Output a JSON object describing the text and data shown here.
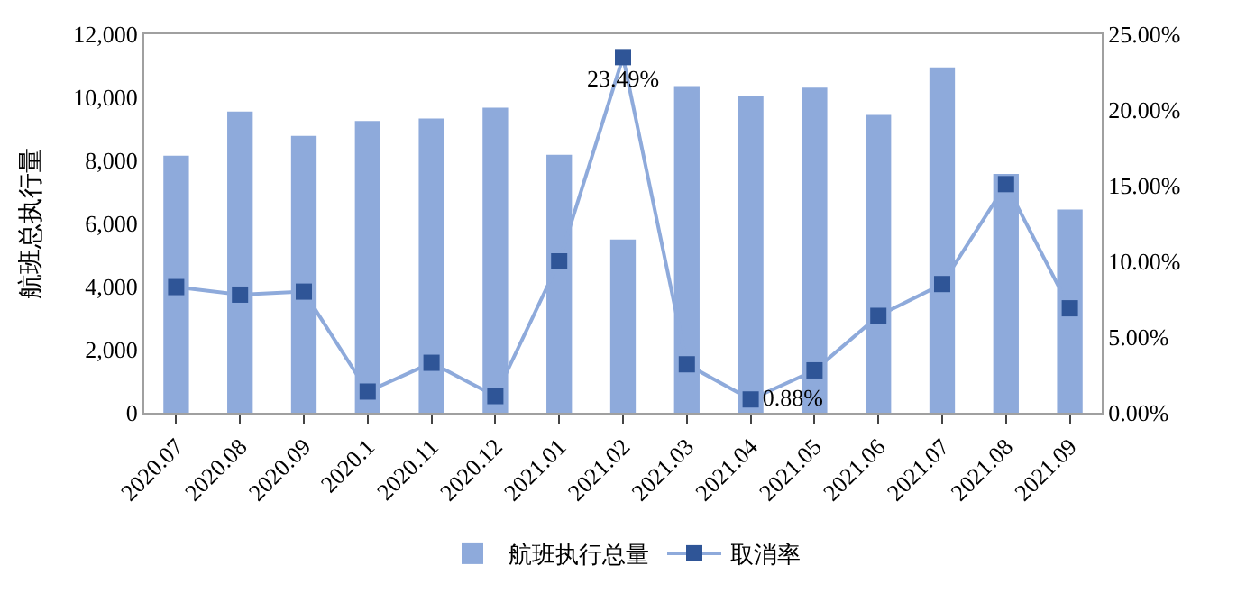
{
  "chart_data": {
    "type": "bar",
    "ylabel": "航班总执行量",
    "categories": [
      "2020.07",
      "2020.08",
      "2020.09",
      "2020.1",
      "2020.11",
      "2020.12",
      "2021.01",
      "2021.02",
      "2021.03",
      "2021.04",
      "2021.05",
      "2021.06",
      "2021.07",
      "2021.08",
      "2021.09"
    ],
    "series": [
      {
        "name": "航班执行总量",
        "color": "#8eaadb",
        "values": [
          8150,
          9550,
          8780,
          9250,
          9330,
          9670,
          8180,
          5490,
          10360,
          10050,
          10310,
          9440,
          10950,
          7570,
          6440
        ]
      },
      {
        "name": "取消率",
        "type": "line",
        "axis": "y2",
        "color": "#2f5597",
        "marker": "square",
        "values": [
          8.3,
          7.8,
          8.0,
          1.4,
          3.3,
          1.1,
          10.0,
          23.49,
          3.2,
          0.88,
          2.8,
          6.4,
          8.5,
          15.1,
          6.9
        ],
        "value_labels": [
          null,
          null,
          null,
          null,
          null,
          null,
          null,
          "23.49%",
          null,
          "0.88%",
          null,
          null,
          null,
          null,
          null
        ]
      }
    ],
    "ylim": [
      0,
      12000
    ],
    "yticks": [
      0,
      {
        "value": 2000,
        "label": "2,000"
      },
      {
        "value": 4000,
        "label": "4,000"
      },
      {
        "value": 6000,
        "label": "6,000"
      },
      {
        "value": 8000,
        "label": "8,000"
      },
      {
        "value": 10000,
        "label": "10,000"
      },
      {
        "value": 12000,
        "label": "12,000"
      }
    ],
    "y2lim": [
      0,
      25
    ],
    "y2ticks": [
      {
        "value": 0,
        "label": "0.00%"
      },
      {
        "value": 5,
        "label": "5.00%"
      },
      {
        "value": 10,
        "label": "10.00%"
      },
      {
        "value": 15,
        "label": "15.00%"
      },
      {
        "value": 20,
        "label": "20.00%"
      },
      {
        "value": 25,
        "label": "25.00%"
      }
    ],
    "legend": "bottom"
  }
}
